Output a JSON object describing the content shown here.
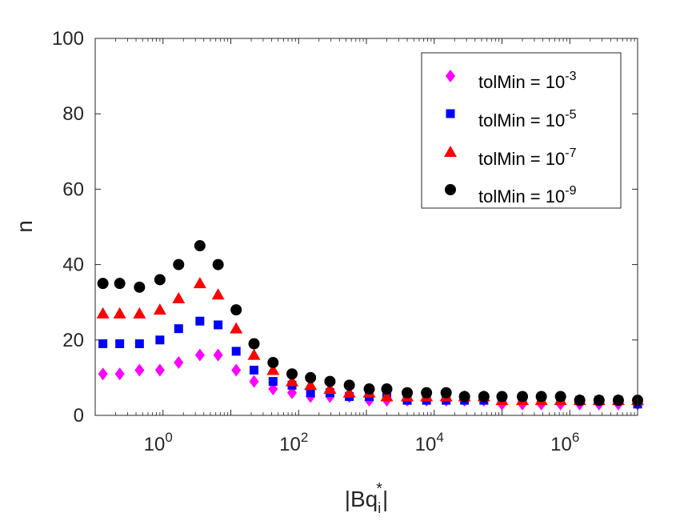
{
  "chart_data": {
    "type": "scatter",
    "xscale": "log",
    "xlim": [
      0.1,
      10000000
    ],
    "ylim": [
      0,
      100
    ],
    "xlabel": "|Bq_i^*|",
    "ylabel": "n",
    "yticks": [
      "0",
      "20",
      "40",
      "60",
      "80",
      "100"
    ],
    "xticks": [
      {
        "base": "10",
        "exp": "0"
      },
      {
        "base": "10",
        "exp": "2"
      },
      {
        "base": "10",
        "exp": "4"
      },
      {
        "base": "10",
        "exp": "6"
      }
    ],
    "legend_position": "top-right",
    "x": [
      0.13,
      0.23,
      0.45,
      0.9,
      1.7,
      3.5,
      6.5,
      12,
      22,
      42,
      80,
      150,
      290,
      560,
      1100,
      2000,
      4000,
      7700,
      15000,
      28000,
      54000,
      100000,
      200000,
      380000,
      730000,
      1400000,
      2700000,
      5200000,
      10000000
    ],
    "series": [
      {
        "name": "tolMin = 10^-3",
        "label_base": "tolMin = 10",
        "label_exp": "-3",
        "marker": "diamond",
        "color": "#ff00ff",
        "values": [
          11,
          11,
          12,
          12,
          14,
          16,
          16,
          12,
          9,
          7,
          6,
          5,
          5,
          5,
          4,
          4,
          4,
          4,
          4,
          4,
          4,
          3,
          3,
          3,
          3,
          3,
          3,
          3,
          3
        ]
      },
      {
        "name": "tolMin = 10^-5",
        "label_base": "tolMin = 10",
        "label_exp": "-5",
        "marker": "square",
        "color": "#0000ff",
        "values": [
          19,
          19,
          19,
          20,
          23,
          25,
          24,
          17,
          12,
          9,
          8,
          6,
          6,
          5,
          5,
          5,
          4,
          4,
          4,
          4,
          4,
          4,
          4,
          4,
          4,
          4,
          4,
          4,
          3
        ]
      },
      {
        "name": "tolMin = 10^-7",
        "label_base": "tolMin = 10",
        "label_exp": "-7",
        "marker": "triangle",
        "color": "#ff0000",
        "values": [
          27,
          27,
          27,
          28,
          31,
          35,
          32,
          23,
          16,
          12,
          9,
          8,
          7,
          6,
          6,
          5,
          5,
          5,
          5,
          5,
          5,
          4,
          4,
          4,
          4,
          4,
          4,
          4,
          4
        ]
      },
      {
        "name": "tolMin = 10^-9",
        "label_base": "tolMin = 10",
        "label_exp": "-9",
        "marker": "circle",
        "color": "#000000",
        "values": [
          35,
          35,
          34,
          36,
          40,
          45,
          40,
          28,
          19,
          14,
          11,
          10,
          9,
          8,
          7,
          7,
          6,
          6,
          6,
          5,
          5,
          5,
          5,
          5,
          5,
          4,
          4,
          4,
          4
        ]
      }
    ]
  },
  "axis_text": {
    "y_label": "n",
    "x_label_base": "|Bq",
    "x_label_sub": "i",
    "x_label_sup": "*",
    "x_label_end": "|"
  }
}
